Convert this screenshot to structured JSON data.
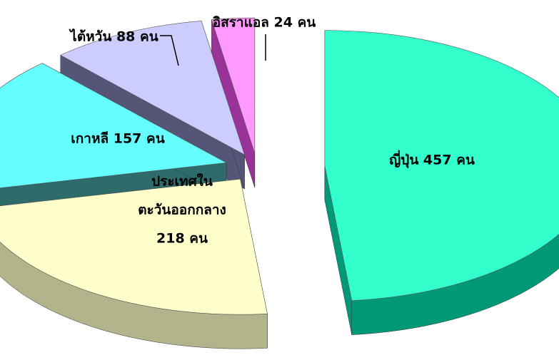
{
  "chart_data": {
    "type": "pie",
    "style": "3d-exploded",
    "unit": "คน",
    "slices": [
      {
        "label": "ญี่ปุ่น",
        "value": 457,
        "text_lines": [
          "ญี่ปุ่น 457 คน"
        ],
        "top_color": "#33FFCC",
        "side_color": "#009977",
        "label_color": "#000000",
        "label_placement": "inside"
      },
      {
        "label": "ประเทศในตะวันออกกลาง",
        "value": 218,
        "text_lines": [
          "ประเทศใน",
          "ตะวันออกกลาง",
          "218 คน"
        ],
        "top_color": "#FFFFCC",
        "side_color": "#B3B38C",
        "label_color": "#000000",
        "label_placement": "inside"
      },
      {
        "label": "เกาหลี",
        "value": 157,
        "text_lines": [
          "เกาหลี 157 คน"
        ],
        "top_color": "#66FFFF",
        "side_color": "#2E6B6B",
        "label_color": "#000000",
        "label_placement": "inside"
      },
      {
        "label": "ไต้หวัน",
        "value": 88,
        "text_lines": [
          "ไต้หวัน 88 คน"
        ],
        "top_color": "#CCCCFF",
        "side_color": "#555577",
        "label_color": "#000000",
        "label_placement": "outside"
      },
      {
        "label": "อิสราแอล",
        "value": 24,
        "text_lines": [
          "อิสราแอล 24 คน"
        ],
        "top_color": "#FF99FF",
        "side_color": "#993399",
        "label_color": "#000000",
        "label_placement": "outside"
      }
    ]
  }
}
